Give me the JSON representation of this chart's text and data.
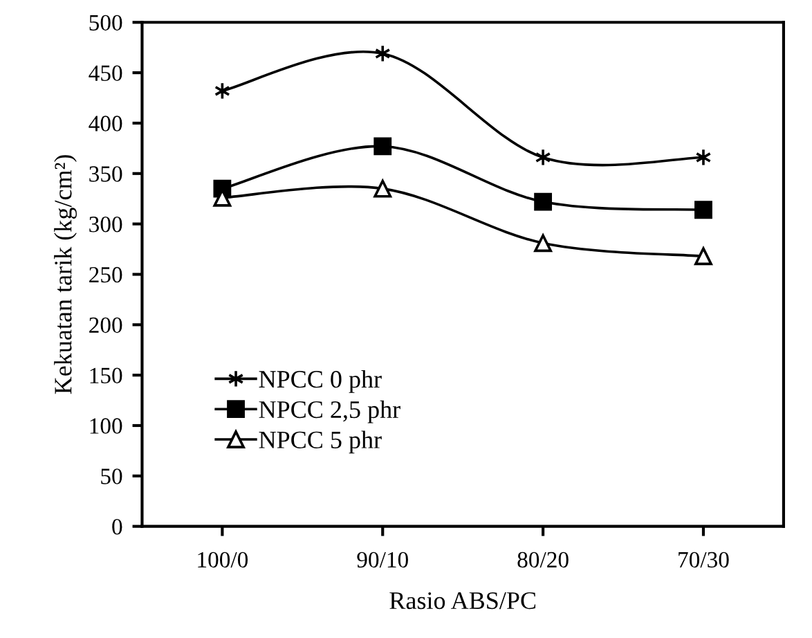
{
  "chart_data": {
    "type": "line",
    "xlabel": "Rasio ABS/PC",
    "ylabel": "Kekuatan tarik (kg/cm²)",
    "categories": [
      "100/0",
      "90/10",
      "80/20",
      "70/30"
    ],
    "series": [
      {
        "name": "NPCC 0 phr",
        "color": "#000000",
        "marker": "cross",
        "values": [
          432,
          469,
          366,
          366
        ]
      },
      {
        "name": "NPCC 2,5 phr",
        "color": "#000000",
        "marker": "square",
        "values": [
          335,
          377,
          322,
          314
        ]
      },
      {
        "name": "NPCC 5 phr",
        "color": "#000000",
        "marker": "triangle",
        "values": [
          326,
          335,
          281,
          268
        ]
      }
    ],
    "ylim": [
      0,
      500
    ],
    "yticks": [
      0,
      50,
      100,
      150,
      200,
      250,
      300,
      350,
      400,
      450,
      500
    ],
    "grid": false,
    "legend": "bottom left",
    "line_style": "solid"
  }
}
